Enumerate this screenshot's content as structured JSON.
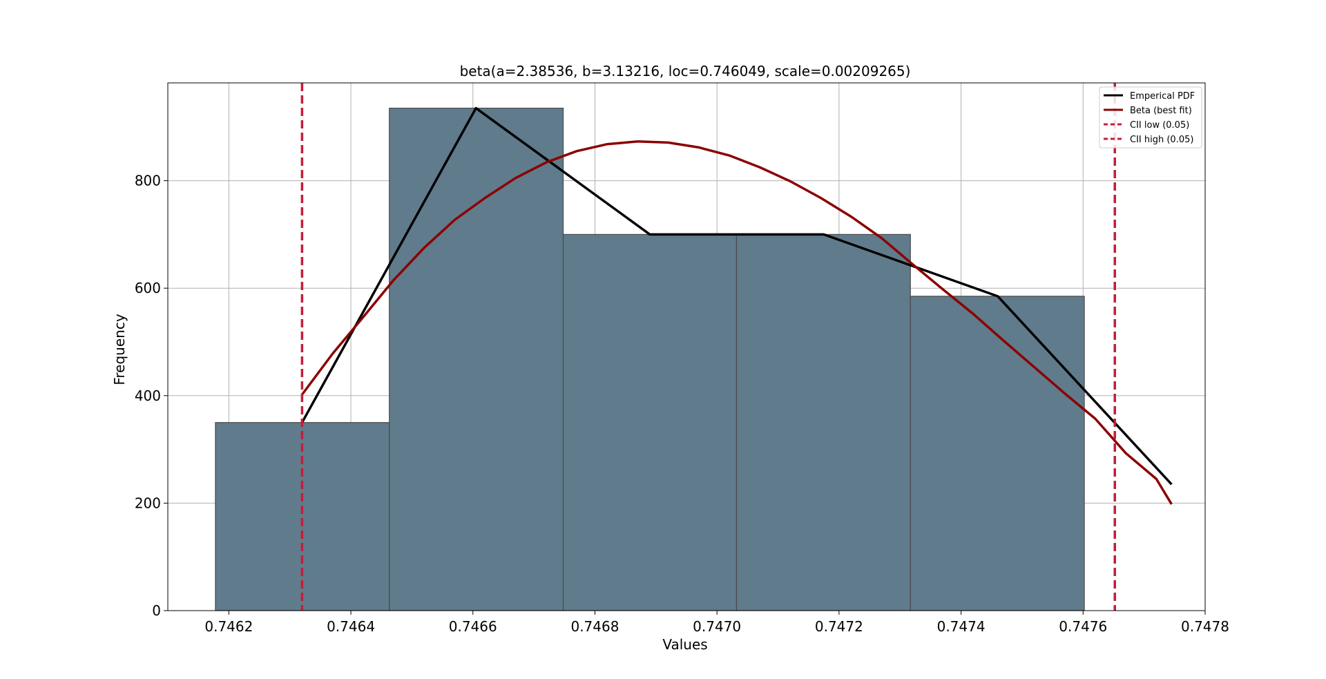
{
  "chart_data": {
    "type": "bar",
    "title": "beta(a=2.38536, b=3.13216, loc=0.746049, scale=0.00209265)",
    "xlabel": "Values",
    "ylabel": "Frequency",
    "xlim": [
      0.7461,
      0.7478
    ],
    "ylim": [
      0,
      982
    ],
    "x_ticks": [
      "0.7462",
      "0.7464",
      "0.7466",
      "0.7468",
      "0.7470",
      "0.7472",
      "0.7474",
      "0.7476",
      "0.7478"
    ],
    "x_tick_values": [
      0.7462,
      0.7464,
      0.7466,
      0.7468,
      0.747,
      0.7472,
      0.7474,
      0.7476,
      0.7478
    ],
    "y_ticks": [
      "0",
      "200",
      "400",
      "600",
      "800"
    ],
    "y_tick_values": [
      0,
      200,
      400,
      600,
      800
    ],
    "grid": true,
    "legend_position": "top-right",
    "colors": {
      "bars": "#607b8b",
      "bar_edge": "#4a4a4a",
      "empirical": "#000000",
      "beta": "#8b0000",
      "cii": "#c41e3a"
    },
    "histogram": {
      "bin_edges": [
        0.746178,
        0.746463,
        0.746748,
        0.747032,
        0.747317,
        0.747602
      ],
      "values": [
        350,
        935,
        700,
        700,
        585
      ]
    },
    "series": [
      {
        "name": "Emperical PDF",
        "type": "line",
        "x": [
          0.74632,
          0.746605,
          0.74689,
          0.747175,
          0.74746,
          0.747745
        ],
        "y": [
          350,
          935,
          700,
          700,
          585,
          235
        ]
      },
      {
        "name": "Beta (best fit)",
        "type": "line",
        "x": [
          0.74632,
          0.74637,
          0.74642,
          0.74647,
          0.74652,
          0.74657,
          0.74662,
          0.74667,
          0.74672,
          0.74677,
          0.74682,
          0.74687,
          0.74692,
          0.74697,
          0.74702,
          0.74707,
          0.74712,
          0.74717,
          0.74722,
          0.74727,
          0.74732,
          0.74737,
          0.74742,
          0.74747,
          0.74752,
          0.74757,
          0.74762,
          0.74767,
          0.74772,
          0.747745
        ],
        "y": [
          402,
          478,
          546,
          615,
          675,
          727,
          768,
          805,
          834,
          855,
          868,
          873,
          871,
          862,
          847,
          825,
          799,
          768,
          733,
          693,
          645,
          598,
          552,
          502,
          453,
          404,
          357,
          293,
          245,
          198
        ]
      },
      {
        "name": "CII low (0.05)",
        "type": "vline",
        "x": 0.74632
      },
      {
        "name": "CII high (0.05)",
        "type": "vline",
        "x": 0.747652
      }
    ]
  }
}
